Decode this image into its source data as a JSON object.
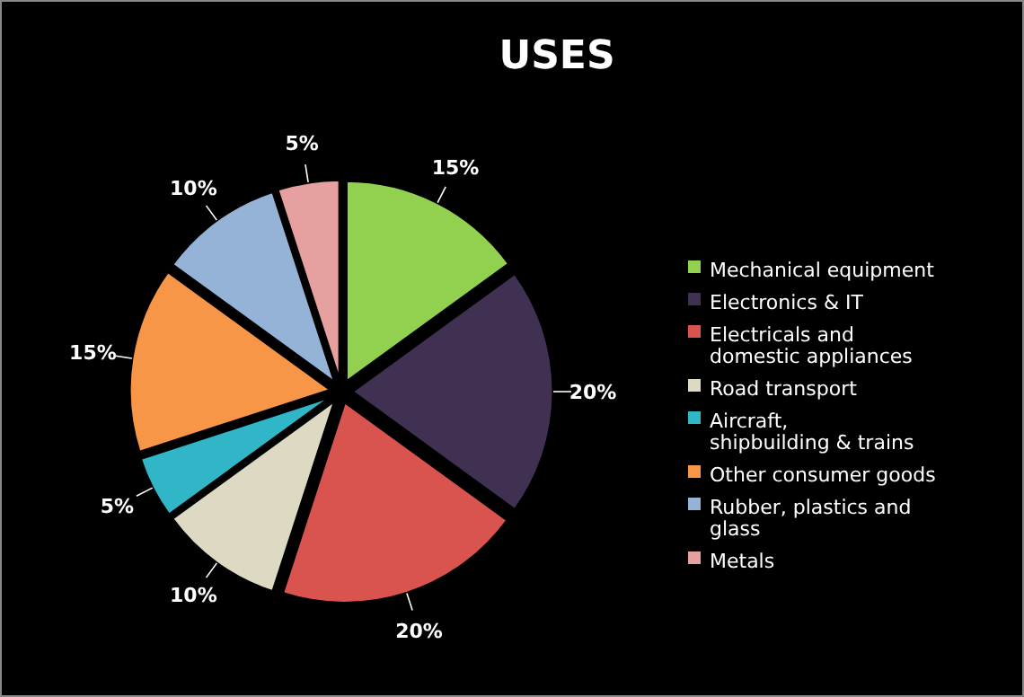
{
  "chart_data": {
    "type": "pie",
    "title": "USES",
    "categories": [
      "Mechanical equipment",
      "Electronics & IT",
      "Electricals and domestic appliances",
      "Road transport",
      "Aircraft, shipbuilding & trains",
      "Other consumer goods",
      "Rubber, plastics and glass",
      "Metals"
    ],
    "values": [
      15,
      20,
      20,
      10,
      5,
      15,
      10,
      5
    ],
    "colors": [
      "#92d050",
      "#403152",
      "#d9534f",
      "#ddd9c3",
      "#31b6c8",
      "#f79646",
      "#95b3d7",
      "#e6a0a0"
    ],
    "value_labels": [
      "15%",
      "20%",
      "20%",
      "10%",
      "5%",
      "15%",
      "10%",
      "5%"
    ],
    "legend": "right"
  }
}
